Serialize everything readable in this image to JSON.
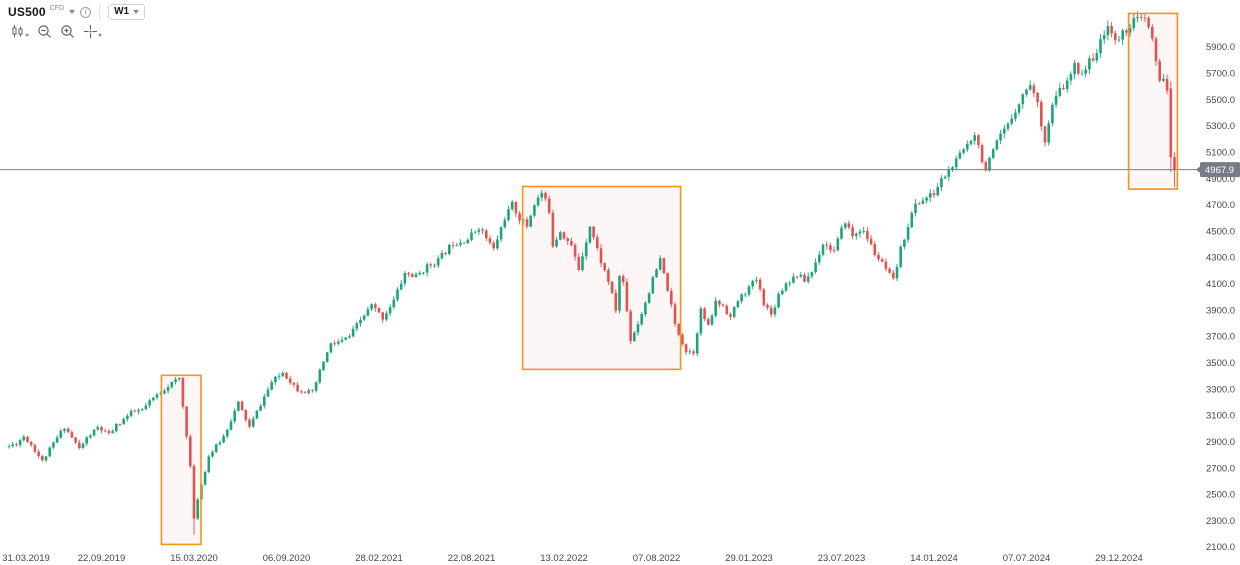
{
  "app": {
    "symbol": "US500",
    "instrument_badge": "CFD",
    "timeframe": "W1"
  },
  "icons": {
    "info_glyph": "i"
  },
  "chart_data": {
    "type": "candlestick",
    "title": "US500 CFD weekly candlestick chart",
    "symbol": "US500",
    "timeframe": "W1",
    "legend_position": "none",
    "grid": false,
    "colors": {
      "up": "#1ca47c",
      "down": "#e0534f",
      "price_line": "#7d7d7d",
      "box_stroke": "#f7931a",
      "box_fill": "rgba(224,82,82,0.05)",
      "axis_text": "#42464e",
      "tag_bg": "#787b86",
      "tag_text": "#ffffff",
      "background": "#ffffff"
    },
    "y_axis": {
      "min": 2100,
      "max": 5900,
      "tick_step": 200,
      "decimals": 1,
      "ticks": [
        5900,
        5700,
        5500,
        5300,
        5100,
        4900,
        4700,
        4500,
        4300,
        4100,
        3900,
        3700,
        3500,
        3300,
        3100,
        2900,
        2700,
        2500,
        2300,
        2100
      ]
    },
    "x_axis": {
      "unit": "week",
      "total_weeks": 316,
      "labels": [
        {
          "label": "31.03.2019",
          "week": 0
        },
        {
          "label": "22.09.2019",
          "week": 25
        },
        {
          "label": "15.03.2020",
          "week": 50
        },
        {
          "label": "06.09.2020",
          "week": 75
        },
        {
          "label": "28.02.2021",
          "week": 100
        },
        {
          "label": "22.08.2021",
          "week": 125
        },
        {
          "label": "13.02.2022",
          "week": 150
        },
        {
          "label": "07.08.2022",
          "week": 175
        },
        {
          "label": "29.01.2023",
          "week": 200
        },
        {
          "label": "23.07.2023",
          "week": 225
        },
        {
          "label": "14.01.2024",
          "week": 250
        },
        {
          "label": "07.07.2024",
          "week": 275
        },
        {
          "label": "29.12.2024",
          "week": 300
        }
      ]
    },
    "price_line": {
      "value": 4967.9,
      "label": "4967.9"
    },
    "highlight_boxes": [
      {
        "name": "covid-crash-2020",
        "week_start": 41.2,
        "week_end": 51.9,
        "price_top": 3405,
        "price_bottom": 2120
      },
      {
        "name": "bear-market-2022",
        "week_start": 138.8,
        "week_end": 181.5,
        "price_top": 4840,
        "price_bottom": 3450
      },
      {
        "name": "drop-2025",
        "week_start": 302.6,
        "week_end": 315.8,
        "price_top": 6155,
        "price_bottom": 4820
      }
    ],
    "trend_anchors": [
      [
        0,
        2867
      ],
      [
        2,
        2888
      ],
      [
        4,
        2940
      ],
      [
        6,
        2878
      ],
      [
        9,
        2752
      ],
      [
        12,
        2886
      ],
      [
        15,
        3014
      ],
      [
        17,
        2932
      ],
      [
        19,
        2847
      ],
      [
        21,
        2926
      ],
      [
        24,
        3007
      ],
      [
        27,
        2952
      ],
      [
        29,
        3022
      ],
      [
        33,
        3120
      ],
      [
        36,
        3141
      ],
      [
        39,
        3230
      ],
      [
        43,
        3327
      ],
      [
        46,
        3380
      ],
      [
        48,
        2954
      ],
      [
        49,
        2711
      ],
      [
        50,
        2305
      ],
      [
        51,
        2470
      ],
      [
        54,
        2790
      ],
      [
        58,
        2940
      ],
      [
        62,
        3194
      ],
      [
        65,
        3010
      ],
      [
        68,
        3185
      ],
      [
        71,
        3351
      ],
      [
        74,
        3427
      ],
      [
        78,
        3298
      ],
      [
        82,
        3270
      ],
      [
        85,
        3510
      ],
      [
        87,
        3638
      ],
      [
        90,
        3665
      ],
      [
        92,
        3700
      ],
      [
        95,
        3824
      ],
      [
        98,
        3935
      ],
      [
        101,
        3842
      ],
      [
        104,
        3975
      ],
      [
        107,
        4180
      ],
      [
        110,
        4155
      ],
      [
        113,
        4230
      ],
      [
        116,
        4280
      ],
      [
        120,
        4412
      ],
      [
        124,
        4440
      ],
      [
        127,
        4535
      ],
      [
        131,
        4360
      ],
      [
        134,
        4605
      ],
      [
        136,
        4698
      ],
      [
        138,
        4600
      ],
      [
        140,
        4540
      ],
      [
        142,
        4710
      ],
      [
        144,
        4790
      ],
      [
        146,
        4660
      ],
      [
        147,
        4400
      ],
      [
        149,
        4505
      ],
      [
        152,
        4385
      ],
      [
        154,
        4210
      ],
      [
        157,
        4546
      ],
      [
        160,
        4270
      ],
      [
        162,
        4125
      ],
      [
        164,
        3900
      ],
      [
        165,
        4160
      ],
      [
        166,
        4110
      ],
      [
        168,
        3675
      ],
      [
        170,
        3800
      ],
      [
        172,
        3960
      ],
      [
        174,
        4130
      ],
      [
        176,
        4280
      ],
      [
        178,
        4060
      ],
      [
        180,
        3790
      ],
      [
        183,
        3590
      ],
      [
        185,
        3585
      ],
      [
        187,
        3900
      ],
      [
        189,
        3770
      ],
      [
        191,
        3960
      ],
      [
        193,
        3935
      ],
      [
        195,
        3845
      ],
      [
        197,
        3972
      ],
      [
        200,
        4070
      ],
      [
        202,
        4135
      ],
      [
        204,
        3960
      ],
      [
        206,
        3865
      ],
      [
        208,
        4020
      ],
      [
        210,
        4105
      ],
      [
        213,
        4170
      ],
      [
        215,
        4125
      ],
      [
        217,
        4192
      ],
      [
        220,
        4410
      ],
      [
        223,
        4350
      ],
      [
        226,
        4580
      ],
      [
        228,
        4460
      ],
      [
        230,
        4515
      ],
      [
        232,
        4450
      ],
      [
        234,
        4330
      ],
      [
        236,
        4250
      ],
      [
        239,
        4120
      ],
      [
        241,
        4360
      ],
      [
        243,
        4550
      ],
      [
        245,
        4700
      ],
      [
        247,
        4740
      ],
      [
        250,
        4784
      ],
      [
        252,
        4890
      ],
      [
        254,
        4960
      ],
      [
        256,
        5030
      ],
      [
        258,
        5120
      ],
      [
        261,
        5250
      ],
      [
        263,
        5050
      ],
      [
        264,
        4965
      ],
      [
        266,
        5100
      ],
      [
        268,
        5222
      ],
      [
        270,
        5300
      ],
      [
        272,
        5430
      ],
      [
        274,
        5530
      ],
      [
        276,
        5630
      ],
      [
        278,
        5460
      ],
      [
        280,
        5190
      ],
      [
        282,
        5450
      ],
      [
        284,
        5570
      ],
      [
        286,
        5625
      ],
      [
        288,
        5750
      ],
      [
        290,
        5705
      ],
      [
        292,
        5785
      ],
      [
        294,
        5870
      ],
      [
        296,
        5985
      ],
      [
        297,
        6090
      ],
      [
        299,
        5930
      ],
      [
        301,
        6005
      ],
      [
        304,
        6100
      ],
      [
        307,
        6115
      ],
      [
        309,
        5954
      ],
      [
        310,
        5770
      ],
      [
        311,
        5638
      ],
      [
        312,
        5680
      ],
      [
        313,
        5580
      ],
      [
        314,
        5062
      ],
      [
        315,
        4967.9
      ]
    ],
    "candle_overrides": [
      {
        "week": 50,
        "low": 2192
      },
      {
        "week": 307,
        "high": 6147
      },
      {
        "week": 314,
        "open": 5585,
        "close": 5062,
        "high": 5640,
        "low": 4950
      },
      {
        "week": 315,
        "open": 5062,
        "close": 4967.9,
        "high": 5098,
        "low": 4835
      }
    ]
  }
}
